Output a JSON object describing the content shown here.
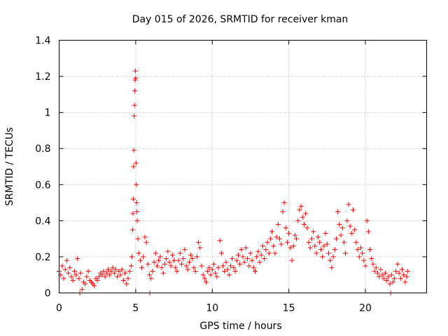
{
  "chart_data": {
    "type": "scatter",
    "title": "Day 015 of 2026, SRMTID for receiver kman",
    "xlabel": "GPS time / hours",
    "ylabel": "SRMTID / TECUs",
    "xlim": [
      0,
      24
    ],
    "ylim": [
      0,
      1.4
    ],
    "xticks": [
      0,
      5,
      10,
      15,
      20
    ],
    "xtick_labels": [
      "0",
      "5",
      "10",
      "15",
      "20"
    ],
    "yticks": [
      0,
      0.2,
      0.4,
      0.6,
      0.8,
      1.0,
      1.2,
      1.4
    ],
    "ytick_labels": [
      "0",
      "0.2",
      "0.4",
      "0.6",
      "0.8",
      "1",
      "1.2",
      "1.4"
    ],
    "grid": true,
    "marker": "plus",
    "color": "#ff0000",
    "series": [
      {
        "name": "SRMTID",
        "points": [
          [
            0.0,
            0.12
          ],
          [
            0.1,
            0.1
          ],
          [
            0.2,
            0.15
          ],
          [
            0.3,
            0.08
          ],
          [
            0.4,
            0.13
          ],
          [
            0.5,
            0.18
          ],
          [
            0.6,
            0.11
          ],
          [
            0.7,
            0.14
          ],
          [
            0.8,
            0.09
          ],
          [
            0.9,
            0.07
          ],
          [
            1.0,
            0.12
          ],
          [
            1.1,
            0.1
          ],
          [
            1.2,
            0.19
          ],
          [
            1.3,
            0.08
          ],
          [
            1.4,
            0.11
          ],
          [
            1.5,
            0.02
          ],
          [
            1.6,
            0.06
          ],
          [
            1.7,
            0.05
          ],
          [
            1.8,
            0.09
          ],
          [
            1.9,
            0.12
          ],
          [
            2.0,
            0.07
          ],
          [
            2.1,
            0.06
          ],
          [
            2.2,
            0.05
          ],
          [
            2.3,
            0.04
          ],
          [
            2.4,
            0.08
          ],
          [
            2.5,
            0.07
          ],
          [
            2.6,
            0.09
          ],
          [
            2.7,
            0.11
          ],
          [
            2.8,
            0.1
          ],
          [
            2.9,
            0.12
          ],
          [
            3.0,
            0.09
          ],
          [
            3.1,
            0.11
          ],
          [
            3.2,
            0.13
          ],
          [
            3.3,
            0.1
          ],
          [
            3.4,
            0.12
          ],
          [
            3.5,
            0.14
          ],
          [
            3.6,
            0.11
          ],
          [
            3.7,
            0.13
          ],
          [
            3.8,
            0.09
          ],
          [
            3.9,
            0.12
          ],
          [
            4.0,
            0.1
          ],
          [
            4.1,
            0.13
          ],
          [
            4.2,
            0.07
          ],
          [
            4.3,
            0.11
          ],
          [
            4.4,
            0.05
          ],
          [
            4.5,
            0.08
          ],
          [
            4.6,
            0.12
          ],
          [
            4.7,
            0.15
          ],
          [
            4.75,
            0.2
          ],
          [
            4.8,
            0.35
          ],
          [
            4.82,
            0.44
          ],
          [
            4.84,
            0.52
          ],
          [
            4.86,
            0.7
          ],
          [
            4.88,
            0.79
          ],
          [
            4.9,
            0.98
          ],
          [
            4.92,
            1.04
          ],
          [
            4.94,
            1.12
          ],
          [
            4.96,
            1.18
          ],
          [
            4.98,
            1.23
          ],
          [
            5.0,
            1.19
          ],
          [
            5.02,
            0.72
          ],
          [
            5.04,
            0.6
          ],
          [
            5.06,
            0.5
          ],
          [
            5.08,
            0.45
          ],
          [
            5.1,
            0.4
          ],
          [
            5.15,
            0.3
          ],
          [
            5.2,
            0.22
          ],
          [
            5.3,
            0.18
          ],
          [
            5.4,
            0.14
          ],
          [
            5.5,
            0.2
          ],
          [
            5.6,
            0.31
          ],
          [
            5.7,
            0.28
          ],
          [
            5.8,
            0.16
          ],
          [
            5.9,
            0.1
          ],
          [
            6.0,
            0.08
          ],
          [
            6.1,
            0.12
          ],
          [
            6.2,
            0.17
          ],
          [
            6.3,
            0.22
          ],
          [
            6.4,
            0.15
          ],
          [
            6.5,
            0.18
          ],
          [
            6.6,
            0.2
          ],
          [
            6.7,
            0.14
          ],
          [
            6.8,
            0.11
          ],
          [
            6.9,
            0.16
          ],
          [
            7.0,
            0.19
          ],
          [
            7.1,
            0.23
          ],
          [
            7.2,
            0.17
          ],
          [
            7.3,
            0.15
          ],
          [
            7.4,
            0.21
          ],
          [
            7.5,
            0.18
          ],
          [
            7.6,
            0.14
          ],
          [
            7.7,
            0.12
          ],
          [
            7.8,
            0.18
          ],
          [
            7.9,
            0.22
          ],
          [
            8.0,
            0.16
          ],
          [
            8.1,
            0.19
          ],
          [
            8.2,
            0.24
          ],
          [
            8.3,
            0.15
          ],
          [
            8.4,
            0.13
          ],
          [
            8.5,
            0.17
          ],
          [
            8.6,
            0.21
          ],
          [
            8.7,
            0.19
          ],
          [
            8.8,
            0.14
          ],
          [
            8.9,
            0.12
          ],
          [
            9.0,
            0.2
          ],
          [
            9.1,
            0.28
          ],
          [
            9.2,
            0.25
          ],
          [
            9.3,
            0.15
          ],
          [
            9.4,
            0.1
          ],
          [
            9.5,
            0.08
          ],
          [
            9.6,
            0.06
          ],
          [
            9.7,
            0.12
          ],
          [
            9.8,
            0.14
          ],
          [
            9.9,
            0.1
          ],
          [
            10.0,
            0.13
          ],
          [
            10.1,
            0.16
          ],
          [
            10.2,
            0.11
          ],
          [
            10.3,
            0.09
          ],
          [
            10.4,
            0.14
          ],
          [
            10.5,
            0.29
          ],
          [
            10.6,
            0.22
          ],
          [
            10.7,
            0.15
          ],
          [
            10.8,
            0.12
          ],
          [
            10.9,
            0.17
          ],
          [
            11.0,
            0.13
          ],
          [
            11.1,
            0.1
          ],
          [
            11.2,
            0.15
          ],
          [
            11.3,
            0.19
          ],
          [
            11.4,
            0.14
          ],
          [
            11.5,
            0.12
          ],
          [
            11.6,
            0.18
          ],
          [
            11.7,
            0.21
          ],
          [
            11.8,
            0.16
          ],
          [
            11.9,
            0.24
          ],
          [
            12.0,
            0.2
          ],
          [
            12.1,
            0.17
          ],
          [
            12.2,
            0.25
          ],
          [
            12.3,
            0.19
          ],
          [
            12.4,
            0.15
          ],
          [
            12.5,
            0.22
          ],
          [
            12.6,
            0.18
          ],
          [
            12.7,
            0.14
          ],
          [
            12.8,
            0.12
          ],
          [
            12.9,
            0.2
          ],
          [
            13.0,
            0.23
          ],
          [
            13.1,
            0.17
          ],
          [
            13.2,
            0.21
          ],
          [
            13.3,
            0.26
          ],
          [
            13.4,
            0.19
          ],
          [
            13.5,
            0.24
          ],
          [
            13.6,
            0.28
          ],
          [
            13.7,
            0.22
          ],
          [
            13.8,
            0.3
          ],
          [
            13.9,
            0.34
          ],
          [
            14.0,
            0.26
          ],
          [
            14.1,
            0.22
          ],
          [
            14.2,
            0.31
          ],
          [
            14.3,
            0.38
          ],
          [
            14.4,
            0.3
          ],
          [
            14.5,
            0.27
          ],
          [
            14.6,
            0.45
          ],
          [
            14.7,
            0.5
          ],
          [
            14.8,
            0.36
          ],
          [
            14.9,
            0.28
          ],
          [
            15.0,
            0.33
          ],
          [
            15.1,
            0.25
          ],
          [
            15.2,
            0.18
          ],
          [
            15.3,
            0.26
          ],
          [
            15.4,
            0.32
          ],
          [
            15.5,
            0.3
          ],
          [
            15.6,
            0.4
          ],
          [
            15.7,
            0.46
          ],
          [
            15.8,
            0.48
          ],
          [
            15.9,
            0.42
          ],
          [
            16.0,
            0.38
          ],
          [
            16.1,
            0.44
          ],
          [
            16.2,
            0.36
          ],
          [
            16.3,
            0.28
          ],
          [
            16.4,
            0.25
          ],
          [
            16.5,
            0.3
          ],
          [
            16.6,
            0.34
          ],
          [
            16.7,
            0.26
          ],
          [
            16.8,
            0.22
          ],
          [
            16.9,
            0.31
          ],
          [
            17.0,
            0.28
          ],
          [
            17.1,
            0.24
          ],
          [
            17.2,
            0.2
          ],
          [
            17.3,
            0.26
          ],
          [
            17.4,
            0.33
          ],
          [
            17.5,
            0.27
          ],
          [
            17.6,
            0.22
          ],
          [
            17.7,
            0.18
          ],
          [
            17.8,
            0.14
          ],
          [
            17.9,
            0.2
          ],
          [
            18.0,
            0.24
          ],
          [
            18.1,
            0.3
          ],
          [
            18.2,
            0.45
          ],
          [
            18.3,
            0.38
          ],
          [
            18.4,
            0.32
          ],
          [
            18.5,
            0.36
          ],
          [
            18.6,
            0.28
          ],
          [
            18.7,
            0.22
          ],
          [
            18.8,
            0.4
          ],
          [
            18.9,
            0.49
          ],
          [
            19.0,
            0.37
          ],
          [
            19.1,
            0.33
          ],
          [
            19.2,
            0.46
          ],
          [
            19.3,
            0.35
          ],
          [
            19.4,
            0.28
          ],
          [
            19.5,
            0.24
          ],
          [
            19.6,
            0.2
          ],
          [
            19.7,
            0.25
          ],
          [
            19.8,
            0.22
          ],
          [
            19.9,
            0.18
          ],
          [
            20.0,
            0.15
          ],
          [
            20.1,
            0.4
          ],
          [
            20.2,
            0.34
          ],
          [
            20.3,
            0.24
          ],
          [
            20.4,
            0.19
          ],
          [
            20.5,
            0.16
          ],
          [
            20.6,
            0.12
          ],
          [
            20.7,
            0.14
          ],
          [
            20.8,
            0.11
          ],
          [
            20.9,
            0.09
          ],
          [
            21.0,
            0.13
          ],
          [
            21.1,
            0.1
          ],
          [
            21.2,
            0.08
          ],
          [
            21.3,
            0.11
          ],
          [
            21.4,
            0.07
          ],
          [
            21.5,
            0.09
          ],
          [
            21.6,
            0.05
          ],
          [
            21.7,
            0.1
          ],
          [
            21.8,
            0.06
          ],
          [
            21.9,
            0.08
          ],
          [
            22.0,
            0.12
          ],
          [
            22.1,
            0.16
          ],
          [
            22.2,
            0.11
          ],
          [
            22.3,
            0.08
          ],
          [
            22.4,
            0.13
          ],
          [
            22.5,
            0.1
          ],
          [
            22.6,
            0.06
          ],
          [
            22.7,
            0.09
          ],
          [
            22.75,
            0.12
          ],
          [
            5.92,
            0.0
          ],
          [
            1.35,
            0.0
          ],
          [
            21.65,
            0.0
          ]
        ]
      }
    ]
  }
}
